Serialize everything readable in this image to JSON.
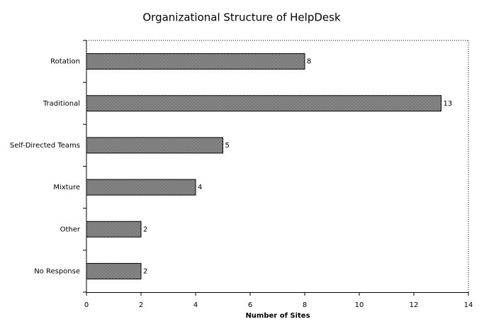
{
  "chart_data": {
    "type": "bar",
    "orientation": "horizontal",
    "title": "Organizational Structure of HelpDesk",
    "x_label": "Number of Sites",
    "categories": [
      "Rotation",
      "Traditional",
      "Self-Directed Teams",
      "Mixture",
      "Other",
      "No Response"
    ],
    "values": [
      8,
      13,
      5,
      4,
      2,
      2
    ],
    "color": "#000000",
    "xlim": [
      0,
      14
    ],
    "xticks": [
      0,
      2,
      4,
      6,
      8,
      10,
      12,
      14
    ],
    "grid": false
  }
}
